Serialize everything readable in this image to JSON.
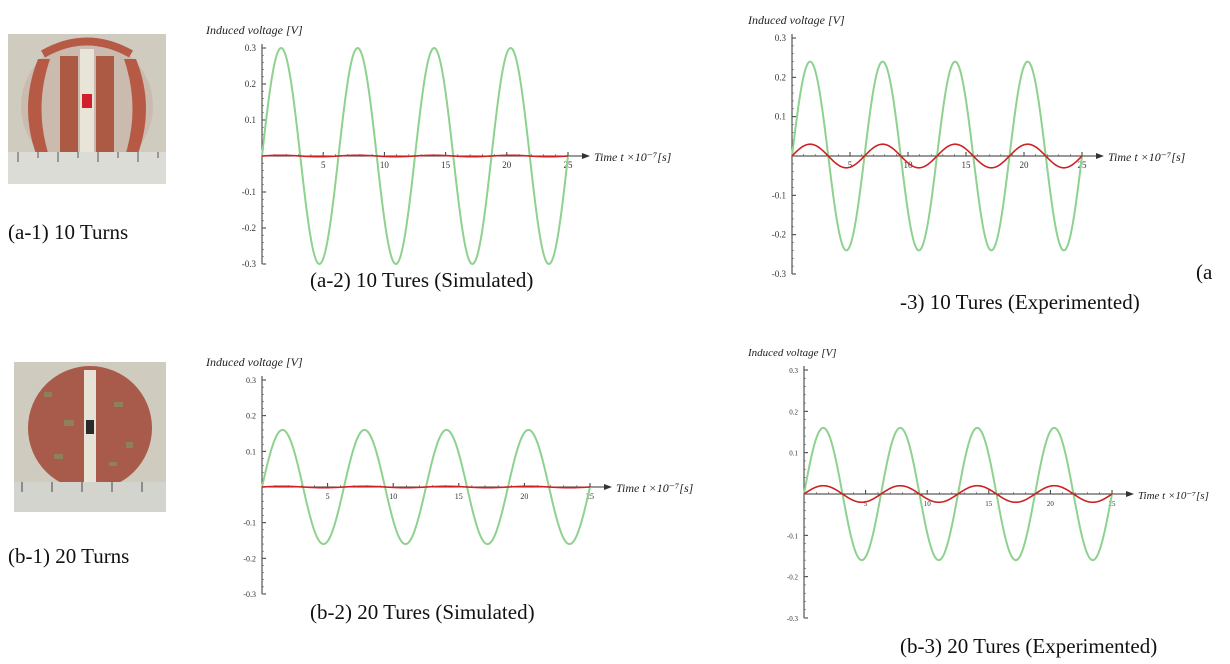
{
  "photos": [
    {
      "id": "a1",
      "caption": "(a-1) 10 Turns"
    },
    {
      "id": "b1",
      "caption": "(b-1) 20 Turns"
    }
  ],
  "colors": {
    "simulated_trace": "#8fd18f",
    "experimented_trace": "#cc2222"
  },
  "chart_data": [
    {
      "type": "line",
      "caption": "(a-2) 10 Tures (Simulated)",
      "ylabel": "Induced voltage  [V]",
      "xlabel": "Time t  ×10⁻⁷[s]",
      "xlim": [
        0,
        25
      ],
      "ylim": [
        -0.3,
        0.3
      ],
      "x_ticks": [
        5,
        10,
        15,
        20,
        25
      ],
      "y_ticks": [
        -0.3,
        -0.2,
        -0.1,
        0.1,
        0.2,
        0.3
      ],
      "grid": false,
      "series": [
        {
          "color": "#8fd18f",
          "kind": "sine",
          "amplitude": 0.3,
          "period": 6.25,
          "phase": 0
        },
        {
          "color": "#cc2222",
          "kind": "sine",
          "amplitude": 0.002,
          "period": 6.25,
          "phase": 0
        }
      ]
    },
    {
      "type": "line",
      "caption_line1": "(a",
      "caption_line2": "-3) 10 Tures (Experimented)",
      "ylabel": "Induced voltage  [V]",
      "xlabel": "Time t  ×10⁻⁷[s]",
      "xlim": [
        0,
        25
      ],
      "ylim": [
        -0.3,
        0.3
      ],
      "x_ticks": [
        5,
        10,
        15,
        20,
        25
      ],
      "y_ticks": [
        -0.3,
        -0.2,
        -0.1,
        0.1,
        0.2,
        0.3
      ],
      "grid": false,
      "series": [
        {
          "color": "#8fd18f",
          "kind": "sine",
          "amplitude": 0.24,
          "period": 6.25,
          "phase": 0
        },
        {
          "color": "#cc2222",
          "kind": "sine",
          "amplitude": 0.03,
          "period": 6.25,
          "phase": 0
        }
      ]
    },
    {
      "type": "line",
      "caption": "(b-2) 20 Tures (Simulated)",
      "ylabel": "Induced voltage  [V]",
      "xlabel": "Time t  ×10⁻⁷[s]",
      "xlim": [
        0,
        25
      ],
      "ylim": [
        -0.3,
        0.3
      ],
      "x_ticks": [
        5,
        10,
        15,
        20,
        25
      ],
      "y_ticks": [
        -0.3,
        -0.2,
        -0.1,
        0.1,
        0.2,
        0.3
      ],
      "grid": false,
      "series": [
        {
          "color": "#8fd18f",
          "kind": "sine",
          "amplitude": 0.16,
          "period": 6.25,
          "phase": 0
        },
        {
          "color": "#cc2222",
          "kind": "sine",
          "amplitude": 0.002,
          "period": 6.25,
          "phase": 0
        }
      ]
    },
    {
      "type": "line",
      "caption": "(b-3) 20 Tures (Experimented)",
      "ylabel": "Induced voltage  [V]",
      "xlabel": "Time t  ×10⁻⁷[s]",
      "xlim": [
        0,
        25
      ],
      "ylim": [
        -0.3,
        0.3
      ],
      "x_ticks": [
        5,
        10,
        15,
        20,
        25
      ],
      "y_ticks": [
        -0.3,
        -0.2,
        -0.1,
        0.1,
        0.2,
        0.3
      ],
      "grid": false,
      "series": [
        {
          "color": "#8fd18f",
          "kind": "sine",
          "amplitude": 0.16,
          "period": 6.25,
          "phase": 0
        },
        {
          "color": "#cc2222",
          "kind": "sine",
          "amplitude": 0.02,
          "period": 6.25,
          "phase": 0
        }
      ]
    }
  ]
}
